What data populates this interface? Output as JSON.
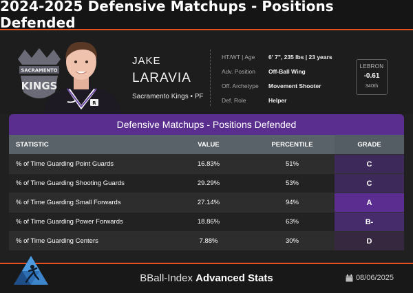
{
  "title": "2024-2025 Defensive Matchups - Positions Defended",
  "player": {
    "first_name": "JAKE",
    "last_name": "LARAVIA",
    "team_pos": "Sacramento Kings • PF",
    "logo_text": "SACRAMENTO KINGS"
  },
  "info": [
    {
      "label": "HT/WT | Age",
      "value": "6' 7\", 235 lbs | 23 years"
    },
    {
      "label": "Adv. Position",
      "value": "Off-Ball Wing"
    },
    {
      "label": "Off. Archetype",
      "value": "Movement Shooter"
    },
    {
      "label": "Def. Role",
      "value": "Helper"
    }
  ],
  "lebron": {
    "label": "LEBRON",
    "value": "-0.61",
    "rank": "340th"
  },
  "table": {
    "title": "Defensive Matchups - Positions Defended",
    "headers": {
      "stat": "STATISTIC",
      "value": "VALUE",
      "pct": "PERCENTILE",
      "grade": "GRADE"
    },
    "rows": [
      {
        "stat": "% of Time Guarding Point Guards",
        "value": "16.83%",
        "pct": "51%",
        "grade": "C",
        "grade_color": "#3e2a5a"
      },
      {
        "stat": "% of Time Guarding Shooting Guards",
        "value": "29.29%",
        "pct": "53%",
        "grade": "C",
        "grade_color": "#3e2a5a"
      },
      {
        "stat": "% of Time Guarding Small Forwards",
        "value": "27.14%",
        "pct": "94%",
        "grade": "A",
        "grade_color": "#5c2d91"
      },
      {
        "stat": "% of Time Guarding Power Forwards",
        "value": "18.86%",
        "pct": "63%",
        "grade": "B-",
        "grade_color": "#472c6c"
      },
      {
        "stat": "% of Time Guarding Centers",
        "value": "7.88%",
        "pct": "30%",
        "grade": "D",
        "grade_color": "#35283f"
      }
    ]
  },
  "footer": {
    "brand": "BBall-Index",
    "title": "Advanced Stats",
    "date": "08/06/2025"
  },
  "colors": {
    "accent": "#e8501e",
    "purple": "#5a2e8f"
  }
}
